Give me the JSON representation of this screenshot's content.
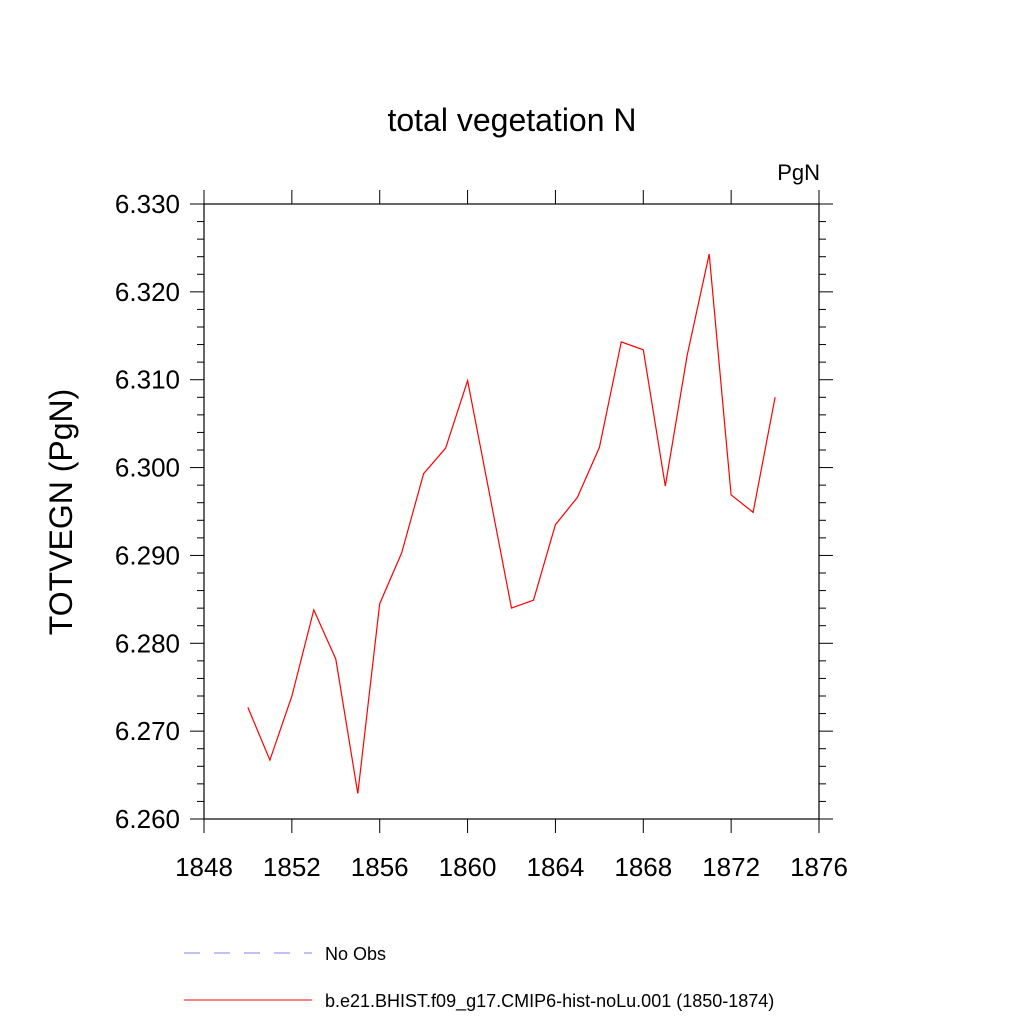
{
  "chart_data": {
    "type": "line",
    "title": "total vegetation N",
    "units_label": "PgN",
    "ylabel": "TOTVEGN  (PgN)",
    "xlabel": "",
    "xlim": [
      1848,
      1876
    ],
    "ylim": [
      6.26,
      6.33
    ],
    "xticks": [
      1848,
      1852,
      1856,
      1860,
      1864,
      1868,
      1872,
      1876
    ],
    "yticks": [
      6.26,
      6.27,
      6.28,
      6.29,
      6.3,
      6.31,
      6.32,
      6.33
    ],
    "ytick_labels": [
      "6.260",
      "6.270",
      "6.280",
      "6.290",
      "6.300",
      "6.310",
      "6.320",
      "6.330"
    ],
    "grid": false,
    "legend_position": "bottom",
    "series": [
      {
        "name": "b.e21.BHIST.f09_g17.CMIP6-hist-noLu.001 (1850-1874)",
        "color": "#ff0000",
        "dash": "solid",
        "x": [
          1850,
          1851,
          1852,
          1853,
          1854,
          1855,
          1856,
          1857,
          1858,
          1859,
          1860,
          1861,
          1862,
          1863,
          1864,
          1865,
          1866,
          1867,
          1868,
          1869,
          1870,
          1871,
          1872,
          1873,
          1874
        ],
        "y": [
          6.2727,
          6.2667,
          6.274,
          6.2838,
          6.2782,
          6.2629,
          6.2845,
          6.2903,
          6.2993,
          6.3022,
          6.3099,
          6.297,
          6.284,
          6.2849,
          6.2935,
          6.2966,
          6.3023,
          6.3143,
          6.3134,
          6.2979,
          6.3128,
          6.3243,
          6.2969,
          6.2949,
          6.308
        ]
      }
    ],
    "legend": [
      {
        "label": "No Obs",
        "color": "#8080ff",
        "dash": "dashed"
      },
      {
        "label": "b.e21.BHIST.f09_g17.CMIP6-hist-noLu.001 (1850-1874)",
        "color": "#ff0000",
        "dash": "solid"
      }
    ]
  }
}
